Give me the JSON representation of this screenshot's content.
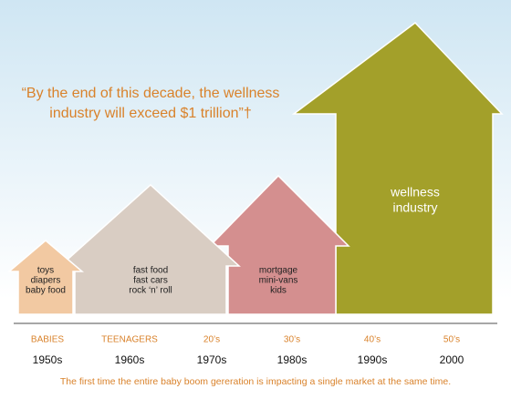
{
  "quote": {
    "lines": [
      "“By the end of this decade, the wellness",
      "industry will exceed $1 trillion”†"
    ]
  },
  "houses": [
    {
      "lines": [
        "toys",
        "diapers",
        "baby food"
      ]
    },
    {
      "lines": [
        "fast food",
        "fast cars",
        "rock ‘n’ roll"
      ]
    },
    {
      "lines": [
        "mortgage",
        "mini-vans",
        "kids"
      ]
    },
    {
      "lines": [
        "wellness",
        "industry"
      ]
    }
  ],
  "timeline": {
    "stages": [
      "BABIES",
      "TEENAGERS",
      "20’s",
      "30’s",
      "40’s",
      "50’s"
    ],
    "decades": [
      "1950s",
      "1960s",
      "1970s",
      "1980s",
      "1990s",
      "2000"
    ]
  },
  "footnote": "The first time the entire baby boom gereration is impacting a single market at the same time."
}
